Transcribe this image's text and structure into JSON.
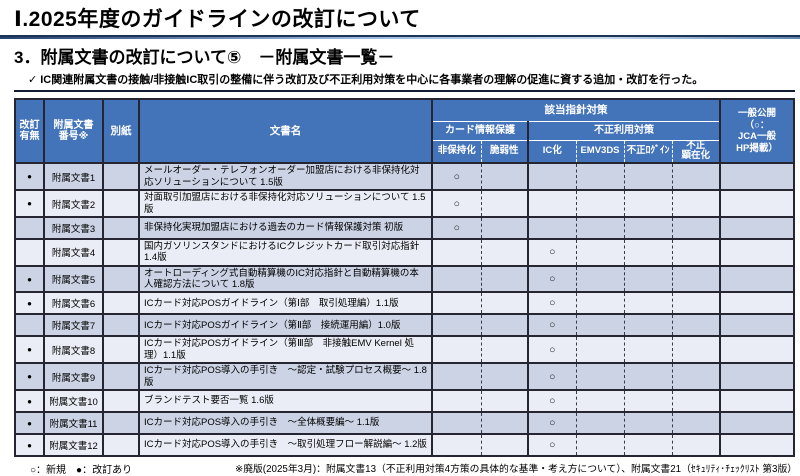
{
  "page": {
    "title": "Ⅰ.2025年度のガイドラインの改訂について",
    "subtitle": "3．附属文書の改訂について⑤　－附属文書一覧－",
    "check_icon": "✓",
    "note": "IC関連附属文書の接触/非接触IC取引の整備に伴う改訂及び不正利用対策を中心に各事業者の理解の促進に資する追加・改訂を行った。"
  },
  "colors": {
    "header_blue": "#4374ba",
    "row_odd": "#ccd3e5",
    "row_even": "#eaedf5"
  },
  "table": {
    "headers": {
      "revision": "改訂\n有無",
      "doc_number": "附属文書\n番号※",
      "sheet": "別紙",
      "doc_name": "文書名",
      "measures_group": "該当指針対策",
      "card_protection": "カード情報保護",
      "fraud_prevention": "不正利用対策",
      "leaves": [
        "非保持化",
        "脆弱性",
        "IC化",
        "EMV3DS",
        "不正ﾛｸﾞｲﾝ",
        "不正\n顕在化"
      ],
      "public": "一般公開\n（○：\nJCA一般\nHP掲載）"
    },
    "rows": [
      {
        "revised": "●",
        "number": "附属文書1",
        "sheet": "",
        "title": "メールオーダー・テレフォンオーダー加盟店における非保持化対応ソリューションについて 1.5版",
        "marks": [
          "○",
          "",
          "",
          "",
          "",
          ""
        ],
        "public": ""
      },
      {
        "revised": "●",
        "number": "附属文書2",
        "sheet": "",
        "title": "対面取引加盟店における非保持化対応ソリューションについて 1.5版",
        "marks": [
          "○",
          "",
          "",
          "",
          "",
          ""
        ],
        "public": ""
      },
      {
        "revised": "",
        "number": "附属文書3",
        "sheet": "",
        "title": "非保持化実現加盟店における過去のカード情報保護対策 初版",
        "marks": [
          "○",
          "",
          "",
          "",
          "",
          ""
        ],
        "public": ""
      },
      {
        "revised": "",
        "number": "附属文書4",
        "sheet": "",
        "title": "国内ガソリンスタンドにおけるICクレジットカード取引対応指針 1.4版",
        "marks": [
          "",
          "",
          "○",
          "",
          "",
          ""
        ],
        "public": ""
      },
      {
        "revised": "●",
        "number": "附属文書5",
        "sheet": "",
        "title": "オートローディング式自動精算機のIC対応指針と自動精算機の本人確認方法について 1.8版",
        "marks": [
          "",
          "",
          "○",
          "",
          "",
          ""
        ],
        "public": ""
      },
      {
        "revised": "●",
        "number": "附属文書6",
        "sheet": "",
        "title": "ICカード対応POSガイドライン（第Ⅰ部　取引処理編）1.1版",
        "marks": [
          "",
          "",
          "○",
          "",
          "",
          ""
        ],
        "public": ""
      },
      {
        "revised": "",
        "number": "附属文書7",
        "sheet": "",
        "title": "ICカード対応POSガイドライン（第Ⅱ部　接続運用編）1.0版",
        "marks": [
          "",
          "",
          "○",
          "",
          "",
          ""
        ],
        "public": ""
      },
      {
        "revised": "●",
        "number": "附属文書8",
        "sheet": "",
        "title": "ICカード対応POSガイドライン（第Ⅲ部　非接触EMV Kernel 処理）1.1版",
        "marks": [
          "",
          "",
          "○",
          "",
          "",
          ""
        ],
        "public": ""
      },
      {
        "revised": "●",
        "number": "附属文書9",
        "sheet": "",
        "title": "ICカード対応POS導入の手引き　～認定・試験プロセス概要～ 1.8版",
        "marks": [
          "",
          "",
          "○",
          "",
          "",
          ""
        ],
        "public": ""
      },
      {
        "revised": "●",
        "number": "附属文書10",
        "sheet": "",
        "title": "ブランドテスト要否一覧 1.6版",
        "marks": [
          "",
          "",
          "○",
          "",
          "",
          ""
        ],
        "public": ""
      },
      {
        "revised": "●",
        "number": "附属文書11",
        "sheet": "",
        "title": "ICカード対応POS導入の手引き　～全体概要編～ 1.1版",
        "marks": [
          "",
          "",
          "○",
          "",
          "",
          ""
        ],
        "public": ""
      },
      {
        "revised": "●",
        "number": "附属文書12",
        "sheet": "",
        "title": "ICカード対応POS導入の手引き　～取引処理フロー解説編～ 1.2版",
        "marks": [
          "",
          "",
          "○",
          "",
          "",
          ""
        ],
        "public": ""
      }
    ]
  },
  "footer": {
    "legend": "○：新規　●：改訂あり",
    "note": "※廃版(2025年3月)：附属文書13（不正利用対策4方策の具体的な基準・考え方について）、附属文書21（ｾｷｭﾘﾃｨ･ﾁｪｯｸﾘｽﾄ 第3版）"
  }
}
